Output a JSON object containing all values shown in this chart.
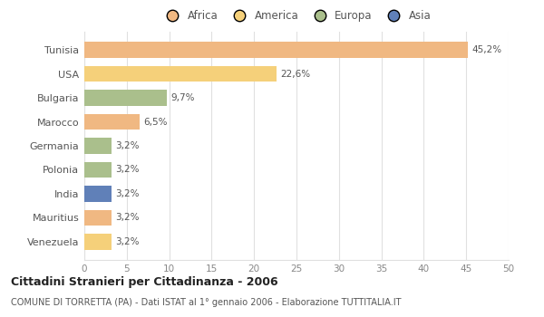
{
  "countries": [
    "Tunisia",
    "USA",
    "Bulgaria",
    "Marocco",
    "Germania",
    "Polonia",
    "India",
    "Mauritius",
    "Venezuela"
  ],
  "values": [
    45.2,
    22.6,
    9.7,
    6.5,
    3.2,
    3.2,
    3.2,
    3.2,
    3.2
  ],
  "labels": [
    "45,2%",
    "22,6%",
    "9,7%",
    "6,5%",
    "3,2%",
    "3,2%",
    "3,2%",
    "3,2%",
    "3,2%"
  ],
  "colors": [
    "#F0B882",
    "#F5D07A",
    "#AABF8C",
    "#F0B882",
    "#AABF8C",
    "#AABF8C",
    "#6080B8",
    "#F0B882",
    "#F5D07A"
  ],
  "legend_labels": [
    "Africa",
    "America",
    "Europa",
    "Asia"
  ],
  "legend_colors": [
    "#F0B882",
    "#F5D07A",
    "#AABF8C",
    "#6080B8"
  ],
  "xlim": [
    0,
    50
  ],
  "xticks": [
    0,
    5,
    10,
    15,
    20,
    25,
    30,
    35,
    40,
    45,
    50
  ],
  "title": "Cittadini Stranieri per Cittadinanza - 2006",
  "subtitle": "COMUNE DI TORRETTA (PA) - Dati ISTAT al 1° gennaio 2006 - Elaborazione TUTTITALIA.IT",
  "background_color": "#ffffff",
  "grid_color": "#e0e0e0"
}
